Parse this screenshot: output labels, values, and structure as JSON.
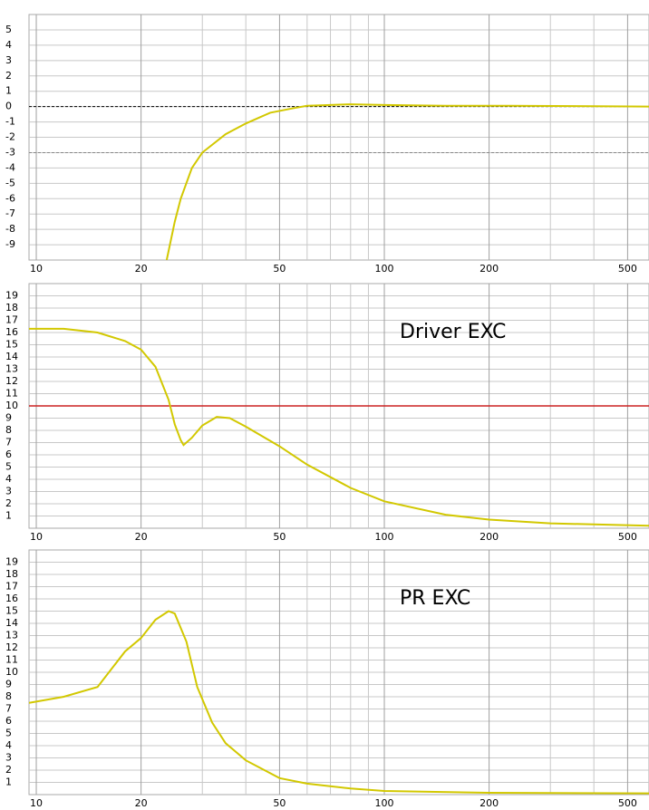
{
  "chart_data": [
    {
      "type": "line",
      "log_x": true,
      "grid": true,
      "xlim": [
        9.53,
        576
      ],
      "ylim": [
        -10,
        6
      ],
      "xticks": [
        10,
        20,
        50,
        100,
        200,
        500
      ],
      "xminor": [
        30,
        40,
        60,
        70,
        80,
        90,
        300,
        400
      ],
      "yticks": [
        5,
        4,
        3,
        2,
        1,
        0,
        -1,
        -2,
        -3,
        -4,
        -5,
        -6,
        -7,
        -8,
        -9
      ],
      "reference_lines": [
        {
          "value": 0,
          "color": "#000000",
          "style": "dashed"
        },
        {
          "value": -3,
          "color": "#888888",
          "style": "dashed"
        }
      ],
      "x": [
        23.7,
        25,
        26,
        28,
        30,
        35,
        40,
        47,
        55,
        60,
        70,
        80,
        100,
        150,
        230,
        576
      ],
      "series": [
        {
          "color": "#d2c800",
          "values": [
            -10,
            -7.5,
            -6,
            -4,
            -3,
            -1.8,
            -1.1,
            -0.4,
            -0.1,
            0.05,
            0.1,
            0.15,
            0.1,
            0.05,
            0.05,
            0
          ]
        }
      ]
    },
    {
      "type": "line",
      "log_x": true,
      "grid": true,
      "xlim": [
        9.53,
        576
      ],
      "ylim": [
        0,
        20
      ],
      "xticks": [
        10,
        20,
        50,
        100,
        200,
        500
      ],
      "xminor": [
        30,
        40,
        60,
        70,
        80,
        90,
        300,
        400
      ],
      "yticks": [
        19,
        18,
        17,
        16,
        15,
        14,
        13,
        12,
        11,
        10,
        9,
        8,
        7,
        6,
        5,
        4,
        3,
        2,
        1
      ],
      "reference_lines": [
        {
          "value": 10,
          "color": "#cc2020",
          "style": "solid"
        }
      ],
      "annotation": "Driver EXC",
      "x": [
        9.53,
        12,
        15,
        18,
        20,
        22,
        24,
        25,
        26,
        26.5,
        28,
        30,
        33,
        36,
        40,
        50,
        60,
        80,
        100,
        150,
        200,
        300,
        576
      ],
      "series": [
        {
          "color": "#d2c800",
          "values": [
            16.3,
            16.3,
            16,
            15.3,
            14.6,
            13.2,
            10.5,
            8.5,
            7.2,
            6.8,
            7.4,
            8.4,
            9.1,
            9,
            8.3,
            6.7,
            5.2,
            3.3,
            2.2,
            1.1,
            0.7,
            0.4,
            0.2
          ]
        }
      ]
    },
    {
      "type": "line",
      "log_x": true,
      "grid": true,
      "xlim": [
        9.53,
        576
      ],
      "ylim": [
        0,
        20
      ],
      "xticks": [
        10,
        20,
        50,
        100,
        200,
        500
      ],
      "xminor": [
        30,
        40,
        60,
        70,
        80,
        90,
        300,
        400
      ],
      "yticks": [
        19,
        18,
        17,
        16,
        15,
        14,
        13,
        12,
        11,
        10,
        9,
        8,
        7,
        6,
        5,
        4,
        3,
        2,
        1
      ],
      "annotation": "PR EXC",
      "x": [
        9.53,
        12,
        15,
        18,
        20,
        22,
        24,
        25,
        27,
        29,
        32,
        35,
        40,
        50,
        60,
        80,
        100,
        200,
        576
      ],
      "series": [
        {
          "color": "#d2c800",
          "values": [
            7.5,
            8,
            8.8,
            11.7,
            12.8,
            14.3,
            15,
            14.8,
            12.5,
            8.8,
            5.9,
            4.2,
            2.8,
            1.35,
            0.9,
            0.5,
            0.3,
            0.15,
            0.1
          ]
        }
      ]
    }
  ]
}
